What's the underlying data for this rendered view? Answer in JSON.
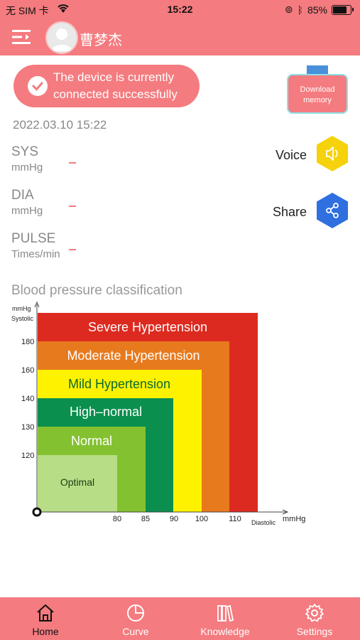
{
  "status_bar": {
    "carrier": "无 SIM 卡",
    "time": "15:22",
    "battery": "85%"
  },
  "header": {
    "username": "曹梦杰"
  },
  "connection": {
    "line1": "The device is currently",
    "line2": "connected successfully"
  },
  "download": {
    "line1": "Download",
    "line2": "memory"
  },
  "datetime": "2022.03.10 15:22",
  "readings": [
    {
      "label": "SYS",
      "unit": "mmHg",
      "value": "–"
    },
    {
      "label": "DIA",
      "unit": "mmHg",
      "value": "–"
    },
    {
      "label": "PULSE",
      "unit": "Times/min",
      "value": "–"
    }
  ],
  "actions": {
    "voice": "Voice",
    "share": "Share"
  },
  "classification": {
    "title": "Blood pressure classification",
    "y_unit": "mmHg",
    "y_axis_label": "Systolic",
    "x_unit": "mmHg",
    "x_axis_label": "Diastolic",
    "y_ticks": [
      "180",
      "160",
      "140",
      "130",
      "120"
    ],
    "x_ticks": [
      "80",
      "85",
      "90",
      "100",
      "110"
    ],
    "zones": [
      {
        "name": "Severe Hypertension",
        "color": "#dd2a20"
      },
      {
        "name": "Moderate Hypertension",
        "color": "#e87a1e"
      },
      {
        "name": "Mild Hypertension",
        "color": "#fff200"
      },
      {
        "name": "High–normal",
        "color": "#0a8f4e"
      },
      {
        "name": "Normal",
        "color": "#84c131"
      },
      {
        "name": "Optimal",
        "color": "#b7dd86"
      }
    ]
  },
  "tabs": [
    {
      "label": "Home",
      "icon": "home-icon"
    },
    {
      "label": "Curve",
      "icon": "pie-chart-icon"
    },
    {
      "label": "Knowledge",
      "icon": "books-icon"
    },
    {
      "label": "Settings",
      "icon": "gear-icon"
    }
  ],
  "colors": {
    "accent": "#f47b7f",
    "voice": "#f5d20b",
    "share": "#2f6fe0"
  }
}
